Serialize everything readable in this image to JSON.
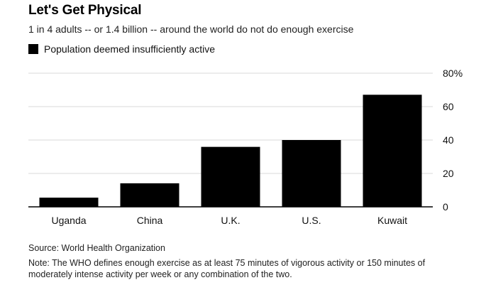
{
  "header": {
    "title": "Let's Get Physical",
    "subtitle": "1 in 4 adults -- or 1.4 billion -- around the world do not do enough exercise"
  },
  "legend": {
    "label": "Population deemed insufficiently active",
    "color": "#000000"
  },
  "chart_data": {
    "type": "bar",
    "title": "Let's Get Physical",
    "categories": [
      "Uganda",
      "China",
      "U.K.",
      "U.S.",
      "Kuwait"
    ],
    "series": [
      {
        "name": "Population deemed insufficiently active",
        "values": [
          5.5,
          14.1,
          35.9,
          40.0,
          67.1
        ]
      }
    ],
    "ylim": [
      0,
      80
    ],
    "yticks": [
      0,
      20,
      40,
      60,
      80
    ],
    "ytick_labels": [
      "0",
      "20",
      "40",
      "60",
      "80%"
    ],
    "xlabel": "",
    "ylabel": "",
    "grid": true,
    "y_axis_side": "right",
    "bar_color": "#000000",
    "grid_color": "#d9d9d9"
  },
  "footer": {
    "source": "Source: World Health Organization",
    "note": "Note: The WHO defines enough exercise as at least 75 minutes of vigorous activity or 150 minutes of moderately intense activity per week or any combination of the two."
  }
}
